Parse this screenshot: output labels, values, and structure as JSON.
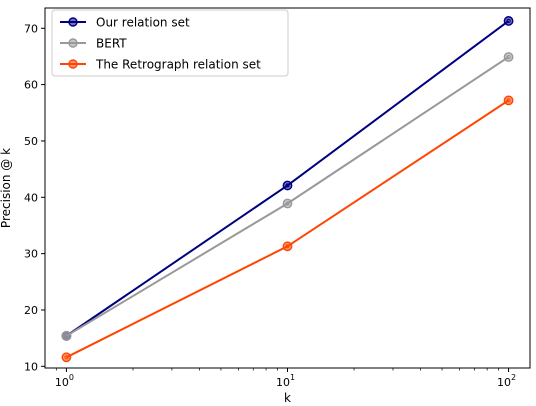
{
  "chart_data": {
    "type": "line",
    "title": "",
    "xlabel": "k",
    "ylabel": "Precision @ k",
    "xscale": "log",
    "x": [
      1,
      10,
      100
    ],
    "xlim": [
      0.8,
      125
    ],
    "ylim": [
      9.7,
      73.6
    ],
    "xticks": [
      {
        "value": 1,
        "base": "10",
        "exp": "0"
      },
      {
        "value": 10,
        "base": "10",
        "exp": "1"
      },
      {
        "value": 100,
        "base": "10",
        "exp": "2"
      }
    ],
    "yticks": [
      10,
      20,
      30,
      40,
      50,
      60,
      70
    ],
    "ytick_labels": [
      "10",
      "20",
      "30",
      "40",
      "50",
      "60",
      "70"
    ],
    "grid": false,
    "legend_position": "top-left",
    "series": [
      {
        "name": "Our relation set",
        "color": "#000080",
        "values": [
          15.4,
          42.1,
          71.3
        ]
      },
      {
        "name": "BERT",
        "color": "#999999",
        "values": [
          15.4,
          38.9,
          64.9
        ]
      },
      {
        "name": "The Retrograph relation set",
        "color": "#ff4500",
        "values": [
          11.6,
          31.3,
          57.2
        ]
      }
    ]
  }
}
